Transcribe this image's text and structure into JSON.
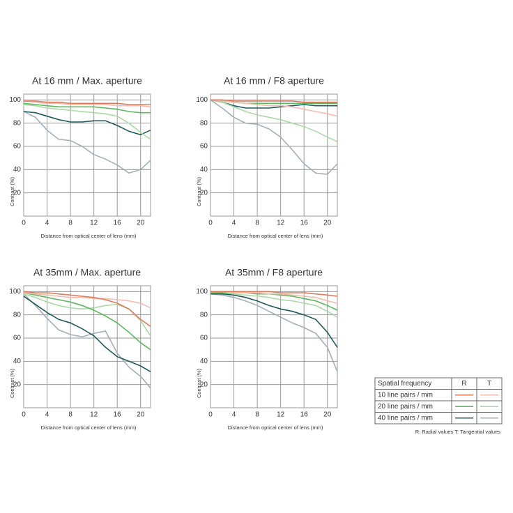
{
  "chart_data": [
    {
      "type": "line",
      "title": "At 16 mm / Max. aperture",
      "xlabel": "Distance from optical center of lens (mm)",
      "ylabel": "Contrast (%)",
      "x": [
        0,
        2,
        4,
        6,
        8,
        10,
        12,
        14,
        16,
        18,
        20,
        21.7
      ],
      "xlim": [
        0,
        21.7
      ],
      "ylim": [
        0,
        105
      ],
      "xticks": [
        0,
        4,
        8,
        12,
        16,
        20
      ],
      "yticks": [
        20,
        40,
        60,
        80,
        100
      ],
      "grid": true,
      "series": [
        {
          "color": "#e0795a",
          "values": [
            99,
            99,
            98,
            98,
            97,
            97,
            97,
            97,
            97,
            96,
            96,
            96
          ]
        },
        {
          "color": "#f2bcae",
          "values": [
            99,
            98,
            97,
            97,
            96,
            96,
            96,
            96,
            95,
            95,
            95,
            94
          ]
        },
        {
          "color": "#5cb85c",
          "values": [
            97,
            96,
            95,
            94,
            94,
            94,
            94,
            93,
            92,
            90,
            89,
            89
          ]
        },
        {
          "color": "#aad9a6",
          "values": [
            96,
            95,
            93,
            92,
            91,
            90,
            89,
            88,
            86,
            80,
            72,
            66
          ]
        },
        {
          "color": "#1f5a5c",
          "values": [
            90,
            89,
            86,
            83,
            81,
            81,
            82,
            82,
            78,
            73,
            70,
            74
          ]
        },
        {
          "color": "#a3afb8",
          "values": [
            90,
            85,
            74,
            66,
            65,
            60,
            53,
            49,
            44,
            37,
            40,
            48
          ]
        }
      ]
    },
    {
      "type": "line",
      "title": "At 16 mm / F8 aperture",
      "xlabel": "Distance from optical center of lens (mm)",
      "ylabel": "Contrast (%)",
      "x": [
        0,
        2,
        4,
        6,
        8,
        10,
        12,
        14,
        16,
        18,
        20,
        21.7
      ],
      "xlim": [
        0,
        21.7
      ],
      "ylim": [
        0,
        105
      ],
      "xticks": [
        0,
        4,
        8,
        12,
        16,
        20
      ],
      "yticks": [
        20,
        40,
        60,
        80,
        100
      ],
      "grid": true,
      "series": [
        {
          "color": "#e0795a",
          "values": [
            100,
            100,
            99,
            99,
            99,
            99,
            99,
            99,
            98,
            98,
            98,
            98
          ]
        },
        {
          "color": "#f2bcae",
          "values": [
            100,
            99,
            98,
            97,
            96,
            95,
            95,
            94,
            92,
            90,
            88,
            86
          ]
        },
        {
          "color": "#5cb85c",
          "values": [
            100,
            99,
            98,
            97,
            97,
            97,
            97,
            97,
            97,
            97,
            97,
            97
          ]
        },
        {
          "color": "#aad9a6",
          "values": [
            100,
            98,
            94,
            90,
            87,
            85,
            83,
            80,
            77,
            73,
            68,
            64
          ]
        },
        {
          "color": "#1f5a5c",
          "values": [
            100,
            98,
            95,
            93,
            93,
            93,
            94,
            95,
            96,
            95,
            95,
            95
          ]
        },
        {
          "color": "#a3afb8",
          "values": [
            100,
            93,
            85,
            80,
            79,
            75,
            68,
            57,
            45,
            37,
            36,
            45
          ]
        }
      ]
    },
    {
      "type": "line",
      "title": "At 35mm / Max. aperture",
      "xlabel": "Distance from optical center of lens (mm)",
      "ylabel": "Contrast (%)",
      "x": [
        0,
        2,
        4,
        6,
        8,
        10,
        12,
        14,
        16,
        18,
        20,
        21.7
      ],
      "xlim": [
        0,
        21.7
      ],
      "ylim": [
        0,
        105
      ],
      "xticks": [
        0,
        4,
        8,
        12,
        16,
        20
      ],
      "yticks": [
        20,
        40,
        60,
        80,
        100
      ],
      "grid": true,
      "series": [
        {
          "color": "#e0795a",
          "values": [
            100,
            99,
            99,
            98,
            97,
            96,
            95,
            93,
            90,
            85,
            76,
            70
          ]
        },
        {
          "color": "#f2bcae",
          "values": [
            99,
            98,
            97,
            96,
            95,
            95,
            94,
            94,
            93,
            92,
            90,
            86
          ]
        },
        {
          "color": "#5cb85c",
          "values": [
            99,
            97,
            95,
            93,
            91,
            88,
            84,
            79,
            73,
            65,
            56,
            50
          ]
        },
        {
          "color": "#aad9a6",
          "values": [
            98,
            95,
            91,
            88,
            86,
            85,
            86,
            88,
            89,
            85,
            75,
            62
          ]
        },
        {
          "color": "#1f5a5c",
          "values": [
            96,
            89,
            82,
            76,
            73,
            68,
            62,
            52,
            44,
            40,
            36,
            31
          ]
        },
        {
          "color": "#a3afb8",
          "values": [
            98,
            88,
            77,
            67,
            63,
            61,
            64,
            66,
            47,
            35,
            27,
            17
          ]
        }
      ]
    },
    {
      "type": "line",
      "title": "At 35mm / F8 aperture",
      "xlabel": "Distance from optical center of lens (mm)",
      "ylabel": "Contrast (%)",
      "x": [
        0,
        2,
        4,
        6,
        8,
        10,
        12,
        14,
        16,
        18,
        20,
        21.7
      ],
      "xlim": [
        0,
        21.7
      ],
      "ylim": [
        0,
        105
      ],
      "xticks": [
        0,
        4,
        8,
        12,
        16,
        20
      ],
      "yticks": [
        20,
        40,
        60,
        80,
        100
      ],
      "grid": true,
      "series": [
        {
          "color": "#e0795a",
          "values": [
            100,
            100,
            100,
            100,
            100,
            100,
            99,
            99,
            99,
            98,
            97,
            96
          ]
        },
        {
          "color": "#f2bcae",
          "values": [
            100,
            100,
            99,
            99,
            99,
            98,
            98,
            97,
            96,
            95,
            92,
            90
          ]
        },
        {
          "color": "#5cb85c",
          "values": [
            99,
            99,
            99,
            99,
            98,
            98,
            97,
            96,
            94,
            92,
            88,
            84
          ]
        },
        {
          "color": "#aad9a6",
          "values": [
            99,
            99,
            98,
            97,
            96,
            95,
            93,
            92,
            90,
            88,
            83,
            78
          ]
        },
        {
          "color": "#1f5a5c",
          "values": [
            98,
            98,
            97,
            95,
            92,
            88,
            85,
            83,
            80,
            76,
            65,
            52
          ]
        },
        {
          "color": "#a3afb8",
          "values": [
            98,
            97,
            95,
            92,
            88,
            83,
            78,
            73,
            69,
            64,
            52,
            31
          ]
        }
      ]
    }
  ],
  "legend_table": {
    "header": [
      "Spatial frequency",
      "R",
      "T"
    ],
    "rows": [
      "10 line pairs / mm",
      "20 line pairs / mm",
      "40 line pairs / mm"
    ],
    "note": "R: Radial values  T: Tangential values"
  }
}
